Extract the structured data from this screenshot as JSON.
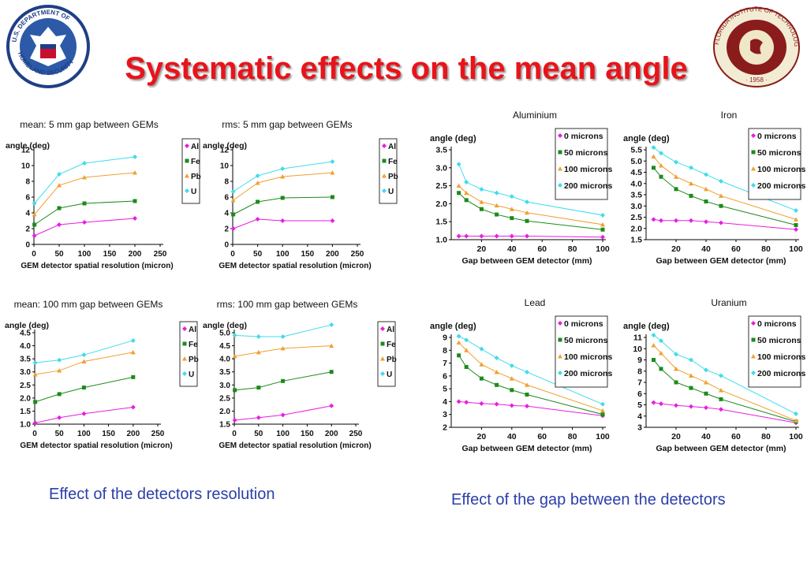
{
  "title": "Systematic effects on the mean angle",
  "logos": {
    "left": {
      "icon": "dhs-seal-icon",
      "text": "U.S. DEPARTMENT OF HOMELAND SECURITY"
    },
    "right": {
      "icon": "fit-seal-icon",
      "text": "FLORIDA INSTITUTE OF TECHNOLOGY · 1958"
    }
  },
  "captions": {
    "resolution": "Effect of the detectors resolution",
    "gap": "Effect of the gap between the detectors"
  },
  "colors": {
    "magenta": "#e81ee0",
    "green": "#1c8a1c",
    "orange": "#f0a030",
    "cyan": "#3fdcec"
  },
  "chart_data": [
    {
      "id": "mean5",
      "type": "line",
      "title": "mean: 5 mm gap between GEMs",
      "ylabel": "angle (deg)",
      "xlabel": "GEM detector spatial resolution (micron)",
      "x": [
        1,
        50,
        100,
        200
      ],
      "xlim": [
        0,
        250
      ],
      "xticks": [
        0,
        50,
        100,
        150,
        200,
        250
      ],
      "ylim": [
        0,
        12
      ],
      "yticks": [
        0,
        2,
        4,
        6,
        8,
        10,
        12
      ],
      "series": [
        {
          "name": "Al",
          "color": "#e81ee0",
          "marker": "diamond",
          "values": [
            1.1,
            2.5,
            2.8,
            3.3
          ]
        },
        {
          "name": "Fe",
          "color": "#1c8a1c",
          "marker": "square",
          "values": [
            2.5,
            4.6,
            5.2,
            5.5
          ]
        },
        {
          "name": "Pb",
          "color": "#f0a030",
          "marker": "triangle",
          "values": [
            3.8,
            7.5,
            8.5,
            9.1
          ]
        },
        {
          "name": "U",
          "color": "#3fdcec",
          "marker": "diamond",
          "values": [
            5.2,
            8.9,
            10.3,
            11.1
          ]
        }
      ]
    },
    {
      "id": "rms5",
      "type": "line",
      "title": "rms: 5 mm gap between GEMs",
      "ylabel": "angle (deg)",
      "xlabel": "GEM detector spatial resolution (micron)",
      "x": [
        1,
        50,
        100,
        200
      ],
      "xlim": [
        0,
        250
      ],
      "xticks": [
        0,
        50,
        100,
        150,
        200,
        250
      ],
      "ylim": [
        0,
        12
      ],
      "yticks": [
        0,
        2,
        4,
        6,
        8,
        10,
        12
      ],
      "series": [
        {
          "name": "Al",
          "color": "#e81ee0",
          "marker": "diamond",
          "values": [
            2.0,
            3.2,
            3.0,
            3.0
          ]
        },
        {
          "name": "Fe",
          "color": "#1c8a1c",
          "marker": "square",
          "values": [
            3.8,
            5.4,
            5.9,
            6.0
          ]
        },
        {
          "name": "Pb",
          "color": "#f0a030",
          "marker": "triangle",
          "values": [
            5.6,
            7.8,
            8.6,
            9.1
          ]
        },
        {
          "name": "U",
          "color": "#3fdcec",
          "marker": "diamond",
          "values": [
            6.7,
            8.7,
            9.6,
            10.5
          ]
        }
      ]
    },
    {
      "id": "mean100",
      "type": "line",
      "title": "mean: 100 mm gap between GEMs",
      "ylabel": "angle (deg)",
      "xlabel": "GEM detector spatial resolution (micron)",
      "x": [
        1,
        50,
        100,
        200
      ],
      "xlim": [
        0,
        250
      ],
      "xticks": [
        0,
        50,
        100,
        150,
        200,
        250
      ],
      "ylim": [
        1.0,
        4.5
      ],
      "yticks": [
        1.0,
        1.5,
        2.0,
        2.5,
        3.0,
        3.5,
        4.0,
        4.5
      ],
      "series": [
        {
          "name": "Al",
          "color": "#e81ee0",
          "marker": "diamond",
          "values": [
            1.05,
            1.25,
            1.4,
            1.65
          ]
        },
        {
          "name": "Fe",
          "color": "#1c8a1c",
          "marker": "square",
          "values": [
            1.85,
            2.15,
            2.4,
            2.8
          ]
        },
        {
          "name": "Pb",
          "color": "#f0a030",
          "marker": "triangle",
          "values": [
            2.9,
            3.05,
            3.4,
            3.75
          ]
        },
        {
          "name": "U",
          "color": "#3fdcec",
          "marker": "diamond",
          "values": [
            3.35,
            3.45,
            3.65,
            4.2
          ]
        }
      ]
    },
    {
      "id": "rms100",
      "type": "line",
      "title": "rms: 100 mm gap between GEMs",
      "ylabel": "angle (deg)",
      "xlabel": "GEM detector spatial resolution (micron)",
      "x": [
        1,
        50,
        100,
        200
      ],
      "xlim": [
        0,
        250
      ],
      "xticks": [
        0,
        50,
        100,
        150,
        200,
        250
      ],
      "ylim": [
        1.5,
        5.0
      ],
      "yticks": [
        1.5,
        2.0,
        2.5,
        3.0,
        3.5,
        4.0,
        4.5,
        5.0
      ],
      "series": [
        {
          "name": "Al",
          "color": "#e81ee0",
          "marker": "diamond",
          "values": [
            1.65,
            1.75,
            1.85,
            2.2
          ]
        },
        {
          "name": "Fe",
          "color": "#1c8a1c",
          "marker": "square",
          "values": [
            2.8,
            2.9,
            3.15,
            3.5
          ]
        },
        {
          "name": "Pb",
          "color": "#f0a030",
          "marker": "triangle",
          "values": [
            4.1,
            4.25,
            4.4,
            4.5
          ]
        },
        {
          "name": "U",
          "color": "#3fdcec",
          "marker": "diamond",
          "values": [
            4.9,
            4.85,
            4.85,
            5.3
          ]
        }
      ]
    },
    {
      "id": "aluminium",
      "type": "line",
      "title": "Aluminium",
      "ylabel": "angle (deg)",
      "xlabel": "Gap between GEM detector (mm)",
      "x": [
        5,
        10,
        20,
        30,
        40,
        50,
        100
      ],
      "xlim": [
        0,
        100
      ],
      "xticks": [
        20,
        40,
        60,
        80,
        100
      ],
      "ylim": [
        1.0,
        3.5
      ],
      "yticks": [
        1.0,
        1.5,
        2.0,
        2.5,
        3.0,
        3.5
      ],
      "series": [
        {
          "name": "0 microns",
          "color": "#e81ee0",
          "marker": "diamond",
          "values": [
            1.1,
            1.1,
            1.1,
            1.1,
            1.1,
            1.1,
            1.07
          ]
        },
        {
          "name": "50 microns",
          "color": "#1c8a1c",
          "marker": "square",
          "values": [
            2.3,
            2.1,
            1.85,
            1.7,
            1.6,
            1.52,
            1.28
          ]
        },
        {
          "name": "100 microns",
          "color": "#f0a030",
          "marker": "triangle",
          "values": [
            2.5,
            2.3,
            2.05,
            1.95,
            1.85,
            1.75,
            1.42
          ]
        },
        {
          "name": "200 microns",
          "color": "#3fdcec",
          "marker": "diamond",
          "values": [
            3.1,
            2.6,
            2.4,
            2.3,
            2.2,
            2.05,
            1.68
          ]
        }
      ]
    },
    {
      "id": "iron",
      "type": "line",
      "title": "Iron",
      "ylabel": "angle (deg)",
      "xlabel": "Gap between GEM detector (mm)",
      "x": [
        5,
        10,
        20,
        30,
        40,
        50,
        100
      ],
      "xlim": [
        0,
        100
      ],
      "xticks": [
        20,
        40,
        60,
        80,
        100
      ],
      "ylim": [
        1.5,
        5.5
      ],
      "yticks": [
        1.5,
        2.0,
        2.5,
        3.0,
        3.5,
        4.0,
        4.5,
        5.0,
        5.5
      ],
      "series": [
        {
          "name": "0 microns",
          "color": "#e81ee0",
          "marker": "diamond",
          "values": [
            2.4,
            2.35,
            2.35,
            2.35,
            2.3,
            2.25,
            1.95
          ]
        },
        {
          "name": "50 microns",
          "color": "#1c8a1c",
          "marker": "square",
          "values": [
            4.7,
            4.3,
            3.75,
            3.45,
            3.2,
            3.0,
            2.15
          ]
        },
        {
          "name": "100 microns",
          "color": "#f0a030",
          "marker": "triangle",
          "values": [
            5.2,
            4.8,
            4.3,
            4.0,
            3.75,
            3.45,
            2.4
          ]
        },
        {
          "name": "200 microns",
          "color": "#3fdcec",
          "marker": "diamond",
          "values": [
            5.6,
            5.35,
            4.95,
            4.7,
            4.4,
            4.1,
            2.8
          ]
        }
      ]
    },
    {
      "id": "lead",
      "type": "line",
      "title": "Lead",
      "ylabel": "angle (deg)",
      "xlabel": "Gap between GEM detector (mm)",
      "x": [
        5,
        10,
        20,
        30,
        40,
        50,
        100
      ],
      "xlim": [
        0,
        100
      ],
      "xticks": [
        20,
        40,
        60,
        80,
        100
      ],
      "ylim": [
        2,
        9
      ],
      "yticks": [
        2,
        3,
        4,
        5,
        6,
        7,
        8,
        9
      ],
      "series": [
        {
          "name": "0 microns",
          "color": "#e81ee0",
          "marker": "diamond",
          "values": [
            4.0,
            3.95,
            3.85,
            3.8,
            3.7,
            3.65,
            2.9
          ]
        },
        {
          "name": "50 microns",
          "color": "#1c8a1c",
          "marker": "square",
          "values": [
            7.6,
            6.7,
            5.8,
            5.3,
            4.9,
            4.55,
            3.0
          ]
        },
        {
          "name": "100 microns",
          "color": "#f0a030",
          "marker": "triangle",
          "values": [
            8.6,
            8.0,
            6.9,
            6.3,
            5.8,
            5.3,
            3.3
          ]
        },
        {
          "name": "200 microns",
          "color": "#3fdcec",
          "marker": "diamond",
          "values": [
            9.1,
            8.8,
            8.1,
            7.4,
            6.8,
            6.3,
            3.8
          ]
        }
      ]
    },
    {
      "id": "uranium",
      "type": "line",
      "title": "Uranium",
      "ylabel": "angle (deg)",
      "xlabel": "Gap between GEM detector (mm)",
      "x": [
        5,
        10,
        20,
        30,
        40,
        50,
        100
      ],
      "xlim": [
        0,
        100
      ],
      "xticks": [
        20,
        40,
        60,
        80,
        100
      ],
      "ylim": [
        3,
        11
      ],
      "yticks": [
        3,
        4,
        5,
        6,
        7,
        8,
        9,
        10,
        11
      ],
      "series": [
        {
          "name": "0 microns",
          "color": "#e81ee0",
          "marker": "diamond",
          "values": [
            5.2,
            5.1,
            4.95,
            4.85,
            4.75,
            4.6,
            3.4
          ]
        },
        {
          "name": "50 microns",
          "color": "#1c8a1c",
          "marker": "square",
          "values": [
            9.0,
            8.2,
            7.0,
            6.5,
            6.0,
            5.5,
            3.5
          ]
        },
        {
          "name": "100 microns",
          "color": "#f0a030",
          "marker": "triangle",
          "values": [
            10.3,
            9.6,
            8.2,
            7.6,
            7.0,
            6.3,
            3.6
          ]
        },
        {
          "name": "200 microns",
          "color": "#3fdcec",
          "marker": "diamond",
          "values": [
            11.2,
            10.7,
            9.5,
            9.0,
            8.1,
            7.6,
            4.2
          ]
        }
      ]
    }
  ]
}
